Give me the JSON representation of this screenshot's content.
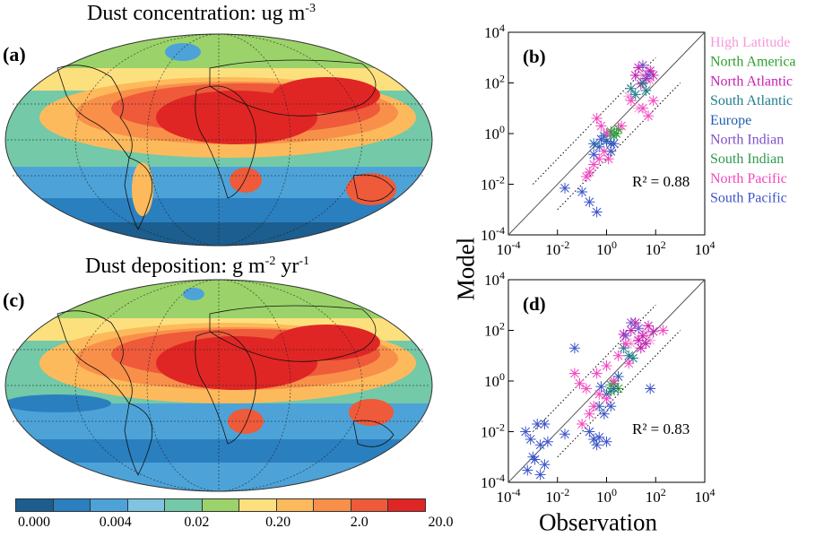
{
  "figure": {
    "panel_a": {
      "label": "(a)",
      "title": "Dust concentration: ug m",
      "title_sup": "-3"
    },
    "panel_c": {
      "label": "(c)",
      "title": "Dust deposition: g m",
      "title_sup1": "-2",
      "title_mid": " yr",
      "title_sup2": "-1"
    },
    "colorbar": {
      "colors": [
        "#1b5e8f",
        "#2a7fbf",
        "#4da3d8",
        "#7fc4e0",
        "#73c9a8",
        "#9bd36a",
        "#fde07e",
        "#fdba5c",
        "#f9904a",
        "#ee5a3a",
        "#e02624"
      ],
      "tick_labels": [
        "0.000",
        "0.004",
        "0.02",
        "0.20",
        "2.0",
        "20.0"
      ]
    },
    "shared": {
      "ylabel": "Model",
      "xlabel": "Observation"
    }
  },
  "chart_data": [
    {
      "type": "scatter",
      "panel": "(b)",
      "xscale": "log",
      "yscale": "log",
      "xlim": [
        0.0001,
        10000
      ],
      "ylim": [
        0.0001,
        10000
      ],
      "xticks": [
        "10-4",
        "10-2",
        "100",
        "102",
        "104"
      ],
      "yticks": [
        "10-4",
        "10-2",
        "100",
        "102",
        "104"
      ],
      "annotation": "R² = 0.88",
      "one_to_one_line": true,
      "factor_10_lines": true,
      "legend": {
        "position": "top-right"
      },
      "series": [
        {
          "name": "High Latitude",
          "color": "#f59adb",
          "points": [
            [
              30,
              200
            ],
            [
              60,
              120
            ],
            [
              8,
              30
            ],
            [
              20,
              10
            ],
            [
              50,
              300
            ]
          ]
        },
        {
          "name": "North America",
          "color": "#2ca02c",
          "points": [
            [
              1.5,
              1.2
            ],
            [
              2.5,
              1.0
            ],
            [
              3,
              1.5
            ]
          ]
        },
        {
          "name": "North Atlantic",
          "color": "#c81fb4",
          "points": [
            [
              20,
              400
            ],
            [
              40,
              150
            ],
            [
              60,
              300
            ],
            [
              80,
              200
            ],
            [
              15,
              200
            ],
            [
              25,
              90
            ]
          ]
        },
        {
          "name": "South Atlantic",
          "color": "#1f7f8c",
          "points": [
            [
              10,
              60
            ],
            [
              30,
              100
            ],
            [
              15,
              35
            ],
            [
              40,
              50
            ]
          ]
        },
        {
          "name": "Europe",
          "color": "#2160b0",
          "points": [
            [
              0.5,
              0.3
            ],
            [
              1.0,
              0.5
            ],
            [
              0.3,
              0.4
            ],
            [
              0.8,
              0.8
            ],
            [
              1.5,
              0.4
            ]
          ]
        },
        {
          "name": "North Indian",
          "color": "#7e4fc9",
          "points": [
            [
              30,
              500
            ],
            [
              50,
              200
            ]
          ]
        },
        {
          "name": "South Indian",
          "color": "#2f9a4e",
          "points": [
            [
              1.5,
              1.0
            ],
            [
              2.0,
              0.8
            ]
          ]
        },
        {
          "name": "North Pacific",
          "color": "#f447c1",
          "points": [
            [
              0.2,
              0.03
            ],
            [
              0.3,
              0.06
            ],
            [
              0.5,
              0.1
            ],
            [
              0.8,
              0.2
            ],
            [
              1.2,
              0.1
            ],
            [
              0.4,
              4
            ],
            [
              0.6,
              2
            ],
            [
              1.0,
              1.0
            ],
            [
              4,
              2
            ],
            [
              10,
              20
            ],
            [
              50,
              5
            ],
            [
              30,
              10
            ],
            [
              80,
              20
            ],
            [
              0.15,
              0.02
            ]
          ]
        },
        {
          "name": "South Pacific",
          "color": "#3d55c8",
          "points": [
            [
              0.02,
              0.007
            ],
            [
              0.2,
              0.002
            ],
            [
              0.4,
              0.0008
            ],
            [
              0.1,
              0.005
            ],
            [
              0.3,
              0.15
            ],
            [
              2,
              0.4
            ],
            [
              1.5,
              0.2
            ],
            [
              0.6,
              0.6
            ]
          ]
        }
      ]
    },
    {
      "type": "scatter",
      "panel": "(d)",
      "xscale": "log",
      "yscale": "log",
      "xlim": [
        0.0001,
        10000
      ],
      "ylim": [
        0.0001,
        10000
      ],
      "xticks": [
        "10-4",
        "10-2",
        "100",
        "102",
        "104"
      ],
      "yticks": [
        "10-4",
        "10-2",
        "100",
        "102",
        "104"
      ],
      "annotation": "R² = 0.83",
      "one_to_one_line": true,
      "factor_10_lines": true,
      "series": [
        {
          "name": "High Latitude",
          "color": "#f59adb",
          "points": [
            [
              20,
              50
            ],
            [
              40,
              80
            ],
            [
              10,
              30
            ],
            [
              60,
              40
            ]
          ]
        },
        {
          "name": "North America",
          "color": "#2ca02c",
          "points": [
            [
              2,
              0.8
            ],
            [
              3,
              0.5
            ],
            [
              1.5,
              0.4
            ]
          ]
        },
        {
          "name": "North Atlantic",
          "color": "#c81fb4",
          "points": [
            [
              10,
              100
            ],
            [
              30,
              60
            ],
            [
              50,
              150
            ],
            [
              20,
              40
            ],
            [
              80,
              90
            ],
            [
              15,
              200
            ],
            [
              5,
              70
            ],
            [
              40,
              30
            ],
            [
              25,
              20
            ]
          ]
        },
        {
          "name": "South Atlantic",
          "color": "#1f7f8c",
          "points": [
            [
              5,
              20
            ],
            [
              8,
              10
            ],
            [
              12,
              8
            ]
          ]
        },
        {
          "name": "Europe",
          "color": "#2160b0",
          "points": [
            [
              0.5,
              0.1
            ],
            [
              1.0,
              0.3
            ],
            [
              3,
              1.5
            ],
            [
              2,
              0.5
            ]
          ]
        },
        {
          "name": "North Indian",
          "color": "#7e4fc9",
          "points": [
            [
              10,
              200
            ],
            [
              20,
              120
            ],
            [
              6,
              60
            ]
          ]
        },
        {
          "name": "South Indian",
          "color": "#2f9a4e",
          "points": [
            [
              1.5,
              0.7
            ]
          ]
        },
        {
          "name": "North Pacific",
          "color": "#f447c1",
          "points": [
            [
              0.05,
              2
            ],
            [
              0.08,
              0.8
            ],
            [
              0.3,
              0.1
            ],
            [
              0.2,
              0.05
            ],
            [
              0.5,
              0.3
            ],
            [
              1.0,
              0.2
            ],
            [
              0.1,
              0.02
            ],
            [
              200,
              100
            ],
            [
              0.4,
              2
            ],
            [
              1,
              4
            ],
            [
              3,
              10
            ],
            [
              6,
              30
            ],
            [
              0.15,
              0.5
            ],
            [
              2,
              1
            ],
            [
              8,
              5
            ]
          ]
        },
        {
          "name": "South Pacific",
          "color": "#3d55c8",
          "points": [
            [
              0.0005,
              0.01
            ],
            [
              0.0008,
              0.005
            ],
            [
              0.001,
              0.001
            ],
            [
              0.002,
              0.003
            ],
            [
              0.003,
              0.0005
            ],
            [
              0.0015,
              0.02
            ],
            [
              0.004,
              0.004
            ],
            [
              0.0006,
              0.0003
            ],
            [
              0.0012,
              0.0008
            ],
            [
              0.002,
              0.0002
            ],
            [
              0.3,
              0.005
            ],
            [
              0.4,
              0.003
            ],
            [
              0.5,
              0.006
            ],
            [
              1.0,
              0.004
            ],
            [
              0.2,
              0.01
            ],
            [
              0.05,
              20
            ],
            [
              0.6,
              0.6
            ],
            [
              1.5,
              0.1
            ],
            [
              0.8,
              0.05
            ],
            [
              60,
              0.5
            ],
            [
              0.02,
              0.008
            ],
            [
              0.003,
              0.02
            ]
          ]
        }
      ]
    }
  ]
}
